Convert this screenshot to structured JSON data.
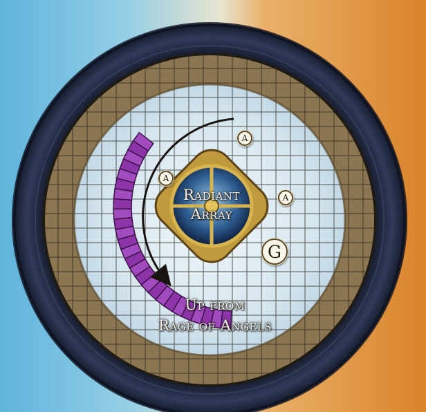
{
  "map": {
    "label_radiant_line1": "Radiant",
    "label_radiant_line2": "Array",
    "label_up_line1": "Up from",
    "label_up_line2": "Rage of Angels",
    "token_a": "A",
    "token_g": "G"
  },
  "colors": {
    "left_bg": "#6fb6d8",
    "right_bg": "#e2963a",
    "rim": "#20283f",
    "ring": "#8a7650",
    "floor": "#dbe9f0",
    "stairs": "#9b3fb3",
    "grid_line": "#2a241a"
  }
}
